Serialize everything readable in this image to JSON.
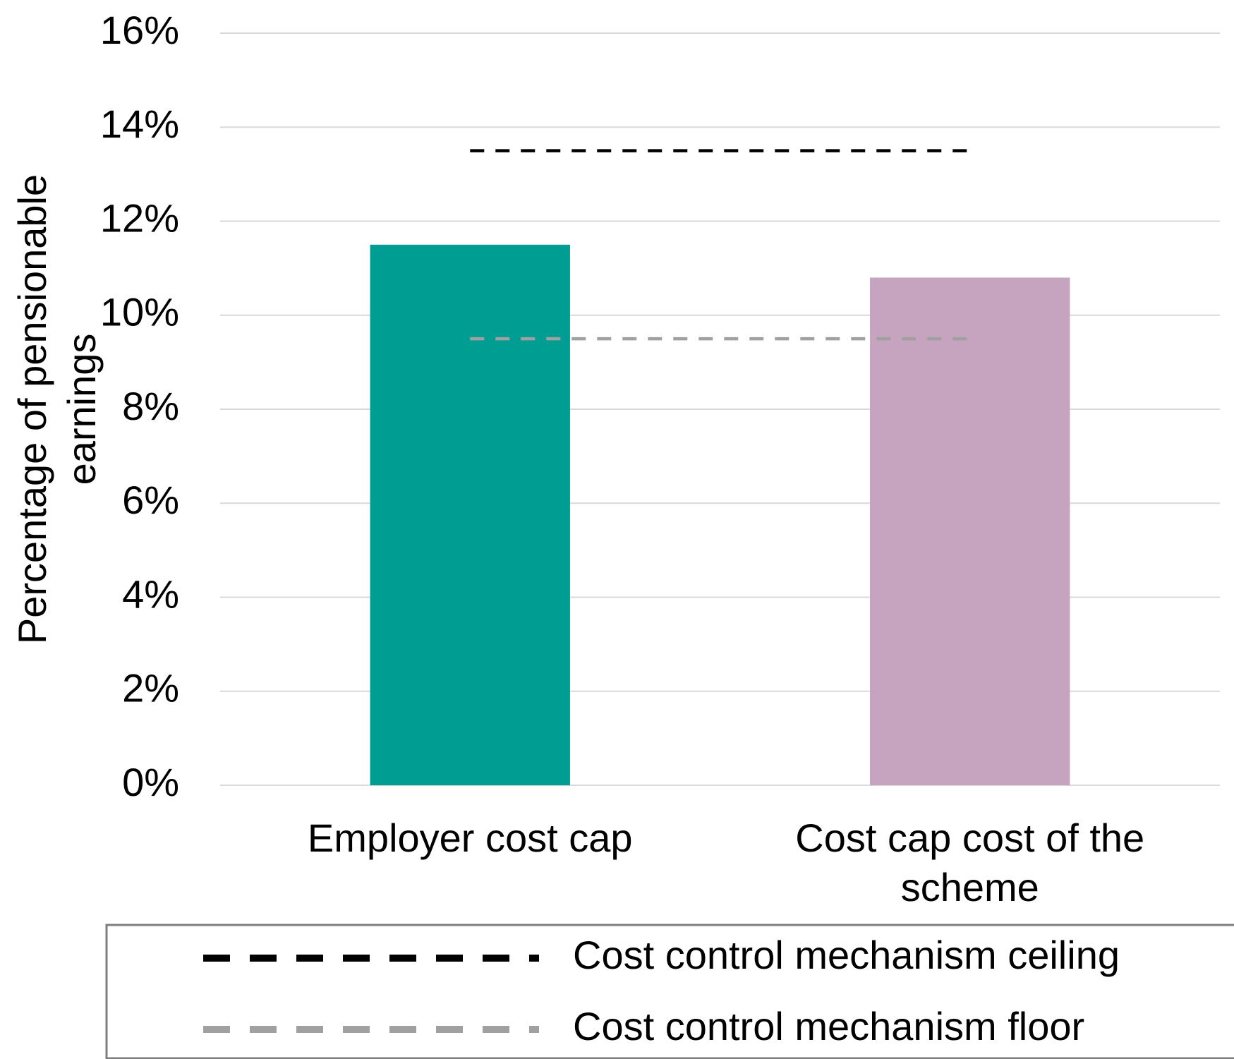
{
  "chart_data": {
    "type": "bar",
    "y_axis_label": "Percentage of pensionable earnings",
    "categories": [
      "Employer cost cap",
      "Cost cap cost of the scheme"
    ],
    "values": [
      11.5,
      10.8
    ],
    "colors": [
      "#009e92",
      "#c6a4c0"
    ],
    "lines": [
      {
        "name": "Cost control mechanism ceiling",
        "color": "#000000",
        "values": [
          13.5,
          13.5
        ]
      },
      {
        "name": "Cost control mechanism floor",
        "color": "#a0a0a0",
        "values": [
          9.5,
          9.5
        ]
      }
    ],
    "ylim": [
      0,
      16
    ],
    "yticks": [
      {
        "value": 0,
        "label": "0%"
      },
      {
        "value": 2,
        "label": "2%"
      },
      {
        "value": 4,
        "label": "4%"
      },
      {
        "value": 6,
        "label": "6%"
      },
      {
        "value": 8,
        "label": "8%"
      },
      {
        "value": 10,
        "label": "10%"
      },
      {
        "value": 12,
        "label": "12%"
      },
      {
        "value": 14,
        "label": "14%"
      },
      {
        "value": 16,
        "label": "16%"
      }
    ],
    "grid": true,
    "legend": "bottom"
  }
}
